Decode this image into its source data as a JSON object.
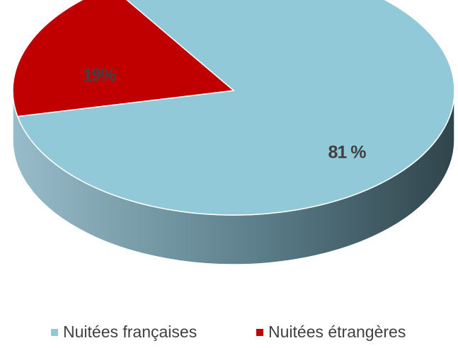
{
  "chart_data": {
    "type": "pie",
    "categories": [
      "Nuitées françaises",
      "Nuitées étrangères"
    ],
    "values": [
      81,
      19
    ],
    "value_labels": [
      "81 %",
      "19%"
    ],
    "colors": [
      "#92c9d9",
      "#c00000"
    ],
    "legend": "bottom"
  }
}
